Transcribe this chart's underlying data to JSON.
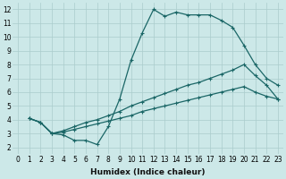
{
  "xlabel": "Humidex (Indice chaleur)",
  "bg_color": "#cce8e8",
  "grid_color": "#aacccc",
  "line_color": "#1a6666",
  "xlim_min": -0.5,
  "xlim_max": 23.5,
  "ylim_min": 1.5,
  "ylim_max": 12.5,
  "xticks": [
    0,
    1,
    2,
    3,
    4,
    5,
    6,
    7,
    8,
    9,
    10,
    11,
    12,
    13,
    14,
    15,
    16,
    17,
    18,
    19,
    20,
    21,
    22,
    23
  ],
  "yticks": [
    2,
    3,
    4,
    5,
    6,
    7,
    8,
    9,
    10,
    11,
    12
  ],
  "line1_x": [
    1,
    2,
    3,
    4,
    5,
    6,
    7,
    8,
    9,
    10,
    11,
    12,
    13,
    14,
    15,
    16,
    17,
    18,
    19,
    20,
    21,
    22,
    23
  ],
  "line1_y": [
    4.1,
    3.8,
    3.0,
    2.9,
    2.5,
    2.5,
    2.2,
    3.5,
    5.5,
    8.3,
    10.3,
    12.0,
    11.5,
    11.8,
    11.6,
    11.6,
    11.6,
    11.2,
    10.7,
    9.4,
    8.0,
    7.0,
    6.5
  ],
  "line2_x": [
    1,
    2,
    3,
    4,
    5,
    6,
    7,
    8,
    9,
    10,
    11,
    12,
    13,
    14,
    15,
    16,
    17,
    18,
    19,
    20,
    21,
    22,
    23
  ],
  "line2_y": [
    4.1,
    3.8,
    3.0,
    3.2,
    3.5,
    3.8,
    4.0,
    4.3,
    4.6,
    5.0,
    5.3,
    5.6,
    5.9,
    6.2,
    6.5,
    6.7,
    7.0,
    7.3,
    7.6,
    8.0,
    7.2,
    6.5,
    5.5
  ],
  "line3_x": [
    1,
    2,
    3,
    4,
    5,
    6,
    7,
    8,
    9,
    10,
    11,
    12,
    13,
    14,
    15,
    16,
    17,
    18,
    19,
    20,
    21,
    22,
    23
  ],
  "line3_y": [
    4.1,
    3.8,
    3.0,
    3.1,
    3.3,
    3.5,
    3.7,
    3.9,
    4.1,
    4.3,
    4.6,
    4.8,
    5.0,
    5.2,
    5.4,
    5.6,
    5.8,
    6.0,
    6.2,
    6.4,
    6.0,
    5.7,
    5.5
  ],
  "marker_size": 3,
  "linewidth": 0.9,
  "tick_fontsize": 5.5
}
